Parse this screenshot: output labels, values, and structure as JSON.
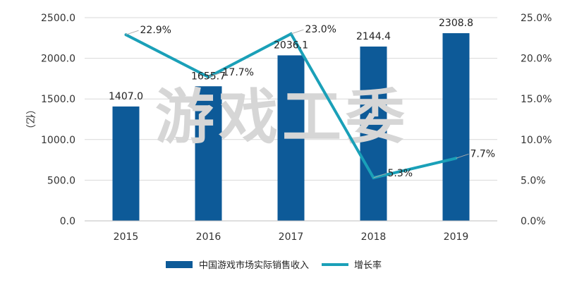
{
  "watermark": "游戏工委",
  "colors": {
    "bar": "#0d5a98",
    "line": "#1aa0b8",
    "grid": "#d9d9d9",
    "axis": "#bfbfbf",
    "background": "#ffffff"
  },
  "chart_data": {
    "type": "bar",
    "categories": [
      "2015",
      "2016",
      "2017",
      "2018",
      "2019"
    ],
    "series": [
      {
        "name": "中国游戏市场实际销售收入",
        "type": "bar",
        "axis": "left",
        "values": [
          1407.0,
          1655.7,
          2036.1,
          2144.4,
          2308.8
        ],
        "labels": [
          "1407.0",
          "1655.7",
          "2036.1",
          "2144.4",
          "2308.8"
        ]
      },
      {
        "name": "增长率",
        "type": "line",
        "axis": "right",
        "values": [
          22.9,
          17.7,
          23.0,
          5.3,
          7.7
        ],
        "labels": [
          "22.9%",
          "17.7%",
          "23.0%",
          "5.3%",
          "7.7%"
        ]
      }
    ],
    "ylabel": "（亿）",
    "ylim": [
      0,
      2500
    ],
    "y_ticks": [
      "0.0",
      "500.0",
      "1000.0",
      "1500.0",
      "2000.0",
      "2500.0"
    ],
    "y2lim": [
      0,
      25
    ],
    "y2_ticks": [
      "0.0%",
      "5.0%",
      "10.0%",
      "15.0%",
      "20.0%",
      "25.0%"
    ],
    "grid": true,
    "legend_position": "bottom"
  }
}
